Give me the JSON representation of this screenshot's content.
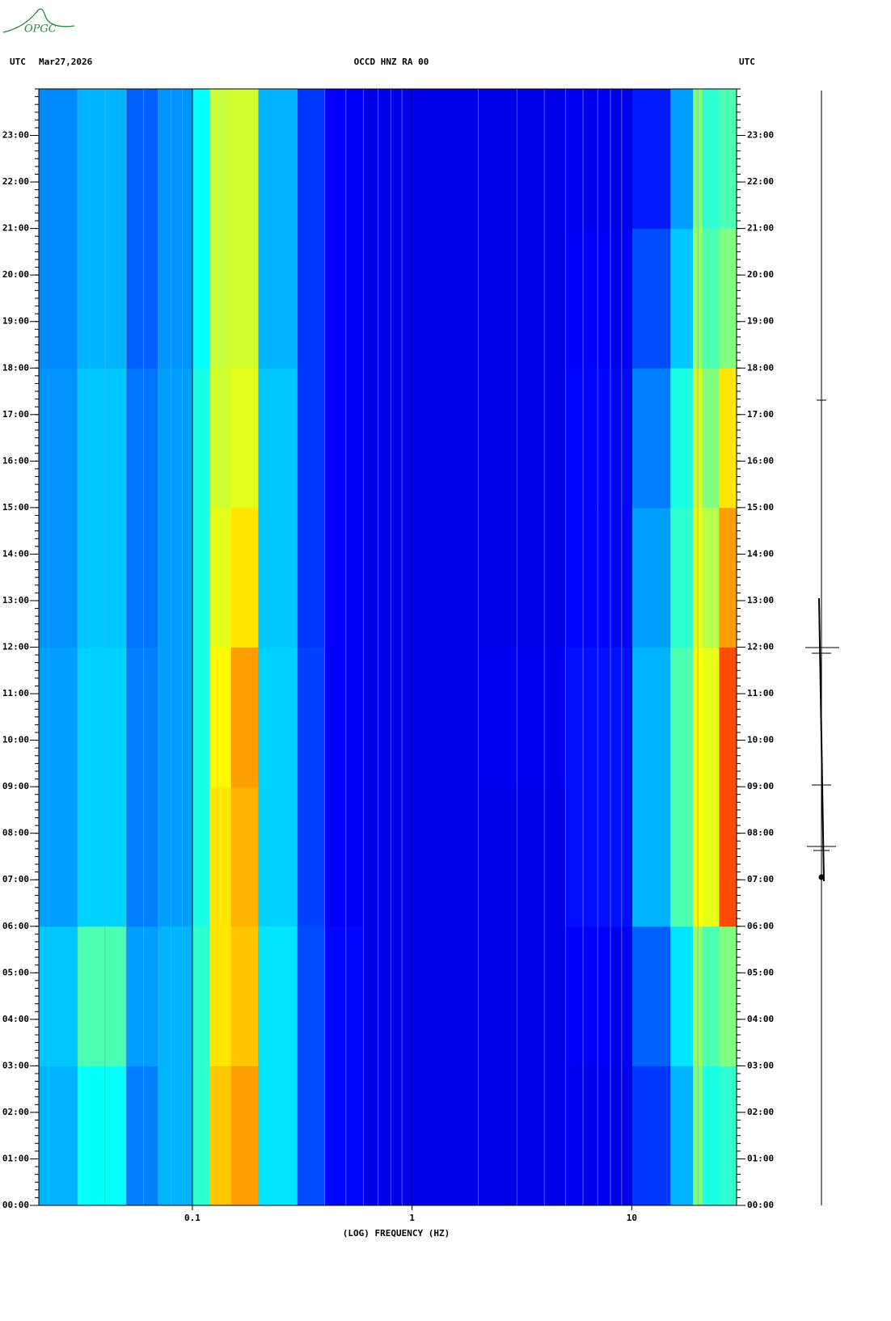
{
  "logo_text": "OPGC",
  "chart_data": {
    "type": "spectrogram",
    "left_header": "UTC",
    "date": "Mar27,2026",
    "title": "OCCD HNZ RA 00",
    "right_header": "UTC",
    "xlabel": "(LOG) FREQUENCY (HZ)",
    "xscale": "log",
    "xlim": [
      0.02,
      30
    ],
    "xticks": [
      0.1,
      1,
      10
    ],
    "ylim": [
      0,
      24
    ],
    "yticks": [
      {
        "value": 0,
        "label": "00:00"
      },
      {
        "value": 1,
        "label": "01:00"
      },
      {
        "value": 2,
        "label": "02:00"
      },
      {
        "value": 3,
        "label": "03:00"
      },
      {
        "value": 4,
        "label": "04:00"
      },
      {
        "value": 5,
        "label": "05:00"
      },
      {
        "value": 6,
        "label": "06:00"
      },
      {
        "value": 7,
        "label": "07:00"
      },
      {
        "value": 8,
        "label": "08:00"
      },
      {
        "value": 9,
        "label": "09:00"
      },
      {
        "value": 10,
        "label": "10:00"
      },
      {
        "value": 11,
        "label": "11:00"
      },
      {
        "value": 12,
        "label": "12:00"
      },
      {
        "value": 13,
        "label": "13:00"
      },
      {
        "value": 14,
        "label": "14:00"
      },
      {
        "value": 15,
        "label": "15:00"
      },
      {
        "value": 16,
        "label": "16:00"
      },
      {
        "value": 17,
        "label": "17:00"
      },
      {
        "value": 18,
        "label": "18:00"
      },
      {
        "value": 19,
        "label": "19:00"
      },
      {
        "value": 20,
        "label": "20:00"
      },
      {
        "value": 21,
        "label": "21:00"
      },
      {
        "value": 22,
        "label": "22:00"
      },
      {
        "value": 23,
        "label": "23:00"
      }
    ],
    "colormap": "jet",
    "clim": [
      0,
      1
    ],
    "freq_bins": [
      0.02,
      0.03,
      0.05,
      0.07,
      0.1,
      0.12,
      0.15,
      0.2,
      0.3,
      0.4,
      0.6,
      1,
      2,
      5,
      10,
      15,
      19,
      21,
      25,
      30
    ],
    "time_bins": [
      0,
      3,
      6,
      9,
      12,
      15,
      18,
      21,
      24
    ],
    "z": [
      [
        0.3,
        0.38,
        0.25,
        0.3,
        0.42,
        0.68,
        0.72,
        0.35,
        0.2,
        0.13,
        0.1,
        0.1,
        0.1,
        0.11,
        0.18,
        0.3,
        0.5,
        0.4,
        0.42
      ],
      [
        0.32,
        0.45,
        0.28,
        0.3,
        0.42,
        0.65,
        0.68,
        0.35,
        0.2,
        0.13,
        0.1,
        0.1,
        0.1,
        0.12,
        0.22,
        0.35,
        0.52,
        0.45,
        0.5
      ],
      [
        0.28,
        0.33,
        0.25,
        0.28,
        0.4,
        0.65,
        0.7,
        0.33,
        0.19,
        0.12,
        0.1,
        0.1,
        0.1,
        0.14,
        0.3,
        0.45,
        0.62,
        0.6,
        0.8
      ],
      [
        0.28,
        0.33,
        0.25,
        0.28,
        0.4,
        0.63,
        0.72,
        0.33,
        0.19,
        0.12,
        0.1,
        0.1,
        0.11,
        0.14,
        0.3,
        0.45,
        0.62,
        0.6,
        0.8
      ],
      [
        0.27,
        0.32,
        0.24,
        0.28,
        0.4,
        0.6,
        0.65,
        0.32,
        0.18,
        0.12,
        0.1,
        0.1,
        0.1,
        0.13,
        0.28,
        0.42,
        0.6,
        0.55,
        0.72
      ],
      [
        0.27,
        0.32,
        0.24,
        0.28,
        0.4,
        0.58,
        0.6,
        0.32,
        0.18,
        0.12,
        0.1,
        0.1,
        0.1,
        0.13,
        0.25,
        0.4,
        0.58,
        0.5,
        0.65
      ],
      [
        0.26,
        0.3,
        0.22,
        0.27,
        0.38,
        0.57,
        0.58,
        0.3,
        0.18,
        0.12,
        0.1,
        0.1,
        0.1,
        0.12,
        0.2,
        0.32,
        0.52,
        0.45,
        0.5
      ],
      [
        0.26,
        0.3,
        0.22,
        0.27,
        0.38,
        0.57,
        0.58,
        0.3,
        0.18,
        0.12,
        0.1,
        0.1,
        0.1,
        0.11,
        0.15,
        0.28,
        0.5,
        0.42,
        0.45
      ]
    ]
  }
}
